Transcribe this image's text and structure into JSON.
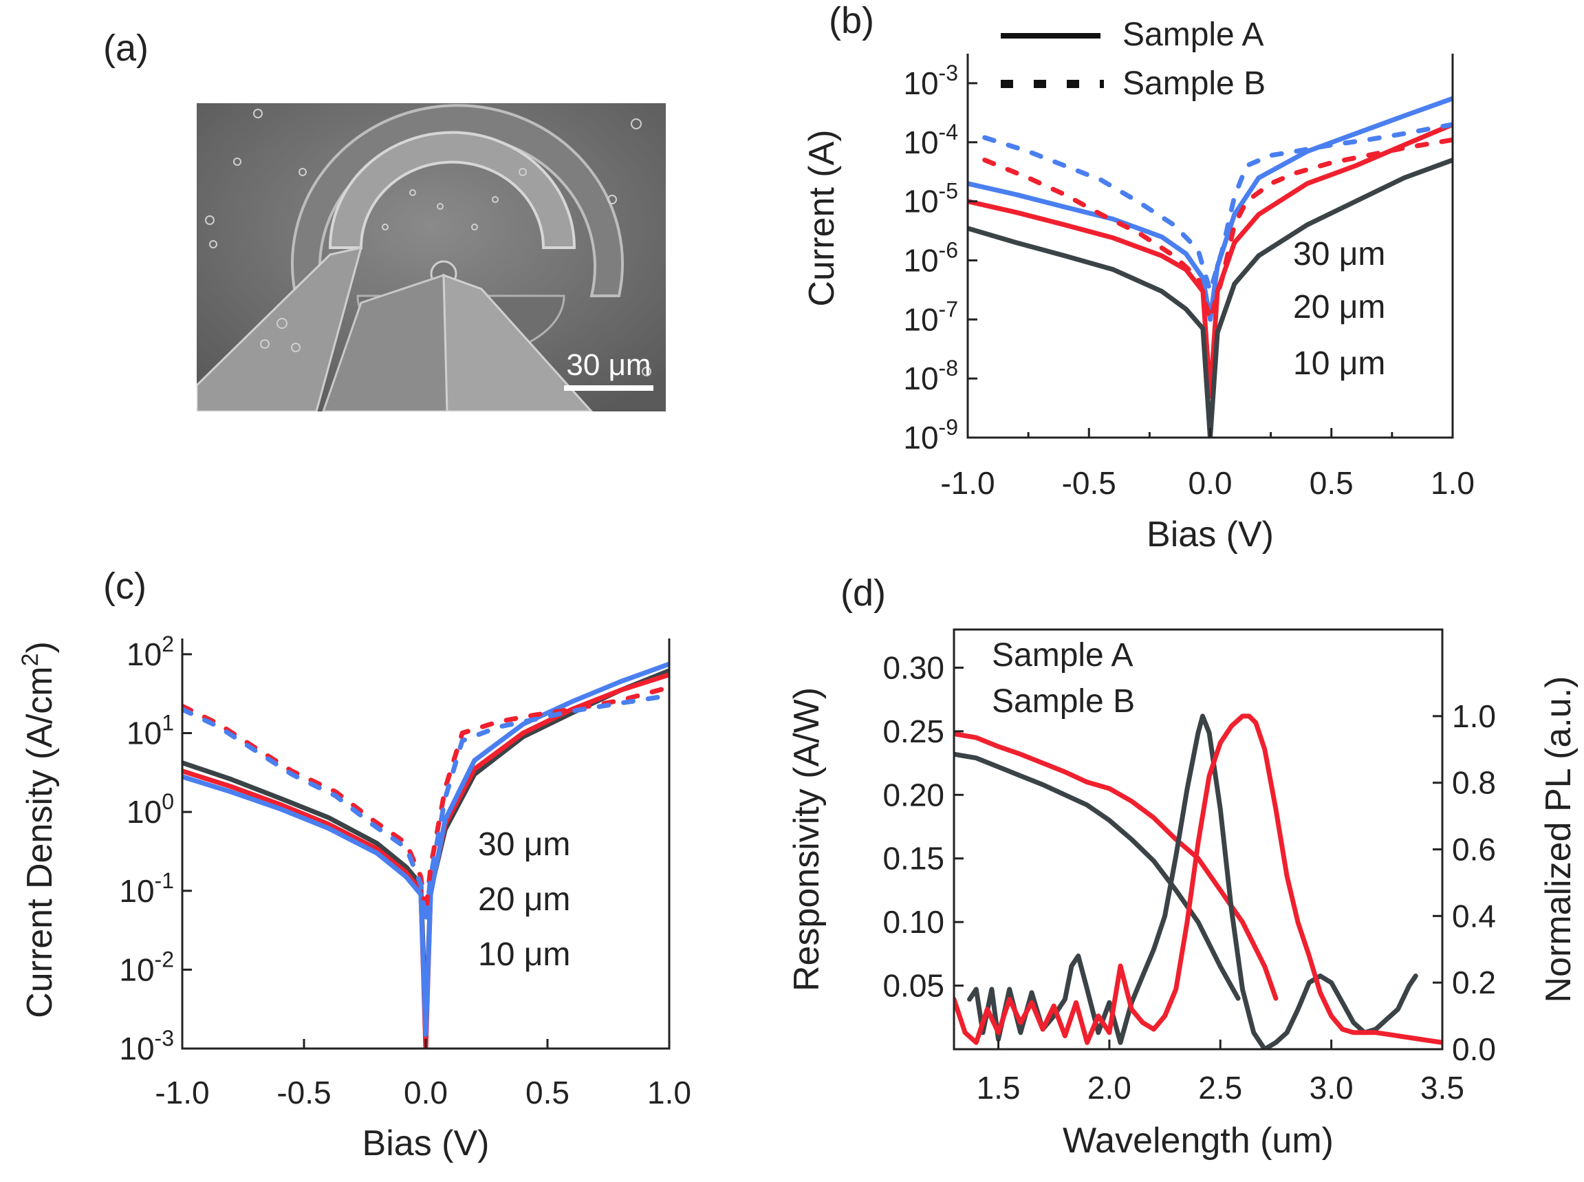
{
  "panels": {
    "a": "(a)",
    "b": "(b)",
    "c": "(c)",
    "d": "(d)"
  },
  "sem": {
    "scalebar_label": "30 μm"
  },
  "colors": {
    "d30": "#4a7ff0",
    "d20": "#f0202e",
    "d10": "#3b4347",
    "bg": "#ffffff"
  },
  "chart_data": [
    {
      "id": "b",
      "type": "line",
      "xlabel": "Bias (V)",
      "ylabel": "Current (A)",
      "xlim": [
        -1.0,
        1.0
      ],
      "ylim_log10": [
        -9,
        -2.5
      ],
      "xticks": [
        "-1.0",
        "-0.5",
        "0.0",
        "0.5",
        "1.0"
      ],
      "yticks": [
        {
          "base": "10",
          "exp": "-9"
        },
        {
          "base": "10",
          "exp": "-8"
        },
        {
          "base": "10",
          "exp": "-7"
        },
        {
          "base": "10",
          "exp": "-6"
        },
        {
          "base": "10",
          "exp": "-5"
        },
        {
          "base": "10",
          "exp": "-4"
        },
        {
          "base": "10",
          "exp": "-3"
        }
      ],
      "legend": [
        {
          "label": "Sample A",
          "style": "solid"
        },
        {
          "label": "Sample B",
          "style": "dashed"
        }
      ],
      "annotations": [
        {
          "text": "30 μm",
          "color": "#4a7ff0"
        },
        {
          "text": "20 μm",
          "color": "#f0202e"
        },
        {
          "text": "10 μm",
          "color": "#3b4347"
        }
      ],
      "series": [
        {
          "name": "30 μm Sample A",
          "style": "solid",
          "color": "#4a7ff0",
          "x": [
            -1.0,
            -0.8,
            -0.6,
            -0.4,
            -0.2,
            -0.1,
            -0.03,
            0.0,
            0.03,
            0.1,
            0.2,
            0.4,
            0.6,
            0.8,
            1.0
          ],
          "y": [
            2e-05,
            1.3e-05,
            8e-06,
            5e-06,
            2.5e-06,
            1.3e-06,
            5e-07,
            1e-07,
            8e-07,
            6e-06,
            2.5e-05,
            7e-05,
            0.00014,
            0.00028,
            0.00055
          ]
        },
        {
          "name": "20 μm Sample A",
          "style": "solid",
          "color": "#f0202e",
          "x": [
            -1.0,
            -0.8,
            -0.6,
            -0.4,
            -0.2,
            -0.1,
            -0.03,
            0.0,
            0.03,
            0.1,
            0.2,
            0.4,
            0.6,
            0.8,
            1.0
          ],
          "y": [
            1e-05,
            6.5e-06,
            4e-06,
            2.4e-06,
            1.2e-06,
            7e-07,
            3e-07,
            5e-09,
            3e-07,
            2e-06,
            6e-06,
            2e-05,
            4e-05,
            9e-05,
            0.0002
          ]
        },
        {
          "name": "10 μm Sample A",
          "style": "solid",
          "color": "#3b4347",
          "x": [
            -1.0,
            -0.8,
            -0.6,
            -0.4,
            -0.2,
            -0.1,
            -0.03,
            0.0,
            0.03,
            0.1,
            0.2,
            0.4,
            0.6,
            0.8,
            1.0
          ],
          "y": [
            3.5e-06,
            2e-06,
            1.2e-06,
            7e-07,
            3e-07,
            1.5e-07,
            7e-08,
            1e-09,
            6e-08,
            4e-07,
            1.2e-06,
            4e-06,
            1e-05,
            2.5e-05,
            5e-05
          ]
        },
        {
          "name": "30 μm Sample B",
          "style": "dashed",
          "color": "#4a7ff0",
          "x": [
            -0.93,
            -0.75,
            -0.6,
            -0.45,
            -0.3,
            -0.15,
            -0.05,
            0.0,
            0.05,
            0.1,
            0.15,
            0.25,
            0.35,
            0.5,
            0.65,
            0.8,
            1.0
          ],
          "y": [
            0.00012,
            7e-05,
            4e-05,
            2.3e-05,
            1e-05,
            4e-06,
            1.5e-06,
            3e-07,
            1.5e-06,
            1.2e-05,
            4e-05,
            6e-05,
            7e-05,
            9e-05,
            0.00011,
            0.00014,
            0.0002
          ]
        },
        {
          "name": "20 μm Sample B",
          "style": "dashed",
          "color": "#f0202e",
          "x": [
            -0.93,
            -0.75,
            -0.6,
            -0.45,
            -0.3,
            -0.15,
            -0.05,
            0.0,
            0.05,
            0.1,
            0.15,
            0.25,
            0.35,
            0.5,
            0.65,
            0.8,
            1.0
          ],
          "y": [
            5e-05,
            2.5e-05,
            1.3e-05,
            6e-06,
            3e-06,
            1.2e-06,
            5e-07,
            1e-07,
            5e-07,
            4e-06,
            1e-05,
            2e-05,
            3e-05,
            4.5e-05,
            6e-05,
            8e-05,
            0.00011
          ]
        }
      ]
    },
    {
      "id": "c",
      "type": "line",
      "xlabel": "Bias (V)",
      "ylabel": "Current Density (A/cm²)",
      "ylabel_parts": {
        "text": "Current Density (A/cm",
        "sup": "2",
        "close": ")"
      },
      "xlim": [
        -1.0,
        1.0
      ],
      "ylim_log10": [
        -3,
        2.2
      ],
      "xticks": [
        "-1.0",
        "-0.5",
        "0.0",
        "0.5",
        "1.0"
      ],
      "yticks": [
        {
          "base": "10",
          "exp": "-3"
        },
        {
          "base": "10",
          "exp": "-2"
        },
        {
          "base": "10",
          "exp": "-1"
        },
        {
          "base": "10",
          "exp": "0"
        },
        {
          "base": "10",
          "exp": "1"
        },
        {
          "base": "10",
          "exp": "2"
        }
      ],
      "annotations": [
        {
          "text": "30 μm",
          "color": "#4a7ff0"
        },
        {
          "text": "20 μm",
          "color": "#f0202e"
        },
        {
          "text": "10 μm",
          "color": "#3b4347"
        }
      ],
      "series": [
        {
          "name": "10 μm Sample A",
          "style": "solid",
          "color": "#3b4347",
          "x": [
            -1.0,
            -0.8,
            -0.6,
            -0.4,
            -0.2,
            -0.08,
            -0.02,
            0.0,
            0.02,
            0.08,
            0.2,
            0.4,
            0.6,
            0.8,
            1.0
          ],
          "y": [
            4.2,
            2.6,
            1.5,
            0.85,
            0.4,
            0.2,
            0.12,
            0.002,
            0.1,
            0.6,
            3,
            9,
            18,
            35,
            62
          ]
        },
        {
          "name": "20 μm Sample A",
          "style": "solid",
          "color": "#f0202e",
          "x": [
            -1.0,
            -0.8,
            -0.6,
            -0.4,
            -0.2,
            -0.08,
            -0.02,
            0.0,
            0.02,
            0.08,
            0.2,
            0.4,
            0.6,
            0.8,
            1.0
          ],
          "y": [
            3.3,
            2.1,
            1.25,
            0.7,
            0.34,
            0.17,
            0.1,
            0.001,
            0.1,
            0.7,
            3.5,
            10,
            20,
            35,
            55
          ]
        },
        {
          "name": "30 μm Sample A",
          "style": "solid",
          "color": "#4a7ff0",
          "x": [
            -1.0,
            -0.8,
            -0.6,
            -0.4,
            -0.2,
            -0.08,
            -0.02,
            0.0,
            0.02,
            0.08,
            0.2,
            0.4,
            0.6,
            0.8,
            1.0
          ],
          "y": [
            2.8,
            1.8,
            1.1,
            0.62,
            0.3,
            0.15,
            0.09,
            0.0015,
            0.09,
            0.8,
            4.5,
            13,
            25,
            45,
            75
          ]
        },
        {
          "name": "20 μm Sample B",
          "style": "dashed",
          "color": "#f0202e",
          "x": [
            -1.0,
            -0.85,
            -0.7,
            -0.55,
            -0.37,
            -0.22,
            -0.08,
            -0.02,
            0.0,
            0.02,
            0.08,
            0.15,
            0.3,
            0.45,
            0.6,
            0.8,
            1.0
          ],
          "y": [
            22,
            13,
            6.5,
            3.3,
            1.8,
            0.8,
            0.4,
            0.15,
            0.05,
            0.2,
            2,
            10,
            14,
            17,
            20,
            26,
            38
          ]
        },
        {
          "name": "30 μm Sample B",
          "style": "dashed",
          "color": "#4a7ff0",
          "x": [
            -1.0,
            -0.85,
            -0.7,
            -0.55,
            -0.37,
            -0.22,
            -0.08,
            -0.02,
            0.0,
            0.02,
            0.08,
            0.15,
            0.3,
            0.45,
            0.6,
            0.8,
            1.0
          ],
          "y": [
            20,
            12,
            6,
            3,
            1.6,
            0.7,
            0.35,
            0.12,
            0.04,
            0.15,
            1.5,
            8,
            12,
            15,
            19,
            24,
            30
          ]
        }
      ]
    },
    {
      "id": "d",
      "type": "line",
      "xlabel": "Wavelength (um)",
      "ylabel_left": "Responsivity (A/W)",
      "ylabel_right": "Normalized PL (a.u.)",
      "xlim": [
        1.3,
        3.5
      ],
      "ylim_left": [
        0.0,
        0.33
      ],
      "ylim_right": [
        0.0,
        1.26
      ],
      "xticks": [
        "1.5",
        "2.0",
        "2.5",
        "3.0",
        "3.5"
      ],
      "yticks_left": [
        "0.05",
        "0.10",
        "0.15",
        "0.20",
        "0.25",
        "0.30"
      ],
      "yticks_right": [
        "0.0",
        "0.2",
        "0.4",
        "0.6",
        "0.8",
        "1.0"
      ],
      "legend": [
        {
          "label": "Sample A",
          "color": "#3b4347"
        },
        {
          "label": "Sample B",
          "color": "#f0202e"
        }
      ],
      "series": [
        {
          "name": "Sample A responsivity",
          "axis": "left",
          "color": "#3b4347",
          "x": [
            1.3,
            1.4,
            1.5,
            1.6,
            1.7,
            1.8,
            1.9,
            2.0,
            2.1,
            2.2,
            2.3,
            2.4,
            2.5,
            2.58
          ],
          "y": [
            0.232,
            0.229,
            0.222,
            0.215,
            0.208,
            0.2,
            0.192,
            0.18,
            0.165,
            0.148,
            0.125,
            0.1,
            0.065,
            0.04
          ]
        },
        {
          "name": "Sample B responsivity",
          "axis": "left",
          "color": "#f0202e",
          "x": [
            1.3,
            1.4,
            1.5,
            1.6,
            1.7,
            1.8,
            1.9,
            2.0,
            2.1,
            2.2,
            2.3,
            2.4,
            2.5,
            2.6,
            2.7,
            2.75
          ],
          "y": [
            0.248,
            0.245,
            0.238,
            0.232,
            0.225,
            0.218,
            0.21,
            0.205,
            0.195,
            0.182,
            0.165,
            0.15,
            0.125,
            0.1,
            0.065,
            0.04
          ]
        },
        {
          "name": "Sample A PL",
          "axis": "right",
          "color": "#3b4347",
          "x": [
            1.37,
            1.4,
            1.43,
            1.47,
            1.5,
            1.55,
            1.6,
            1.65,
            1.7,
            1.75,
            1.8,
            1.83,
            1.86,
            1.9,
            1.95,
            2.0,
            2.05,
            2.1,
            2.15,
            2.2,
            2.25,
            2.3,
            2.35,
            2.4,
            2.42,
            2.45,
            2.5,
            2.55,
            2.6,
            2.65,
            2.7,
            2.75,
            2.8,
            2.85,
            2.9,
            2.95,
            3.0,
            3.05,
            3.1,
            3.15,
            3.2,
            3.25,
            3.3,
            3.35,
            3.38
          ],
          "y": [
            0.15,
            0.18,
            0.05,
            0.18,
            0.03,
            0.18,
            0.05,
            0.17,
            0.06,
            0.1,
            0.15,
            0.25,
            0.28,
            0.18,
            0.05,
            0.14,
            0.02,
            0.14,
            0.22,
            0.3,
            0.4,
            0.58,
            0.78,
            0.95,
            1.0,
            0.95,
            0.72,
            0.42,
            0.18,
            0.05,
            0.0,
            0.02,
            0.05,
            0.12,
            0.2,
            0.22,
            0.2,
            0.14,
            0.08,
            0.05,
            0.06,
            0.09,
            0.12,
            0.19,
            0.22
          ]
        },
        {
          "name": "Sample B PL",
          "axis": "right",
          "color": "#f0202e",
          "x": [
            1.3,
            1.35,
            1.4,
            1.45,
            1.5,
            1.55,
            1.6,
            1.65,
            1.7,
            1.75,
            1.8,
            1.85,
            1.9,
            1.95,
            2.0,
            2.05,
            2.1,
            2.15,
            2.2,
            2.25,
            2.3,
            2.35,
            2.4,
            2.45,
            2.5,
            2.55,
            2.6,
            2.63,
            2.66,
            2.7,
            2.75,
            2.8,
            2.85,
            2.9,
            2.95,
            3.0,
            3.05,
            3.1,
            3.2,
            3.3,
            3.4,
            3.5
          ],
          "y": [
            0.15,
            0.05,
            0.02,
            0.12,
            0.05,
            0.15,
            0.08,
            0.14,
            0.06,
            0.13,
            0.04,
            0.14,
            0.02,
            0.1,
            0.05,
            0.25,
            0.12,
            0.08,
            0.06,
            0.1,
            0.18,
            0.38,
            0.62,
            0.82,
            0.92,
            0.97,
            1.0,
            1.0,
            0.98,
            0.9,
            0.72,
            0.52,
            0.38,
            0.28,
            0.17,
            0.1,
            0.06,
            0.05,
            0.05,
            0.04,
            0.03,
            0.02
          ]
        }
      ]
    }
  ]
}
